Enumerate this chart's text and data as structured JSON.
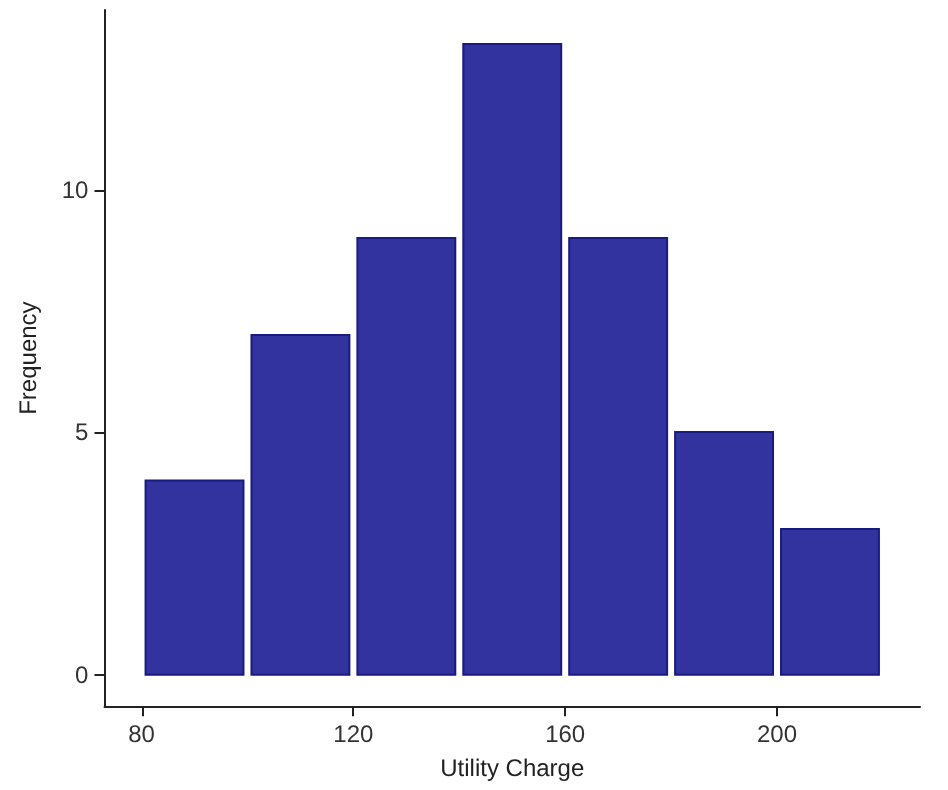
{
  "chart_data": {
    "type": "histogram",
    "xlabel": "Utility Charge",
    "ylabel": "Frequency",
    "bins": [
      80,
      100,
      120,
      140,
      160,
      180,
      200,
      220
    ],
    "values": [
      4,
      7,
      9,
      13,
      9,
      5,
      3
    ],
    "color": "#3333a0",
    "xlim": [
      73,
      227
    ],
    "xticks": [
      80,
      120,
      160,
      200
    ],
    "ylim": [
      -0.65,
      13.7
    ],
    "yticks": [
      0,
      5,
      10
    ],
    "grid": false
  }
}
